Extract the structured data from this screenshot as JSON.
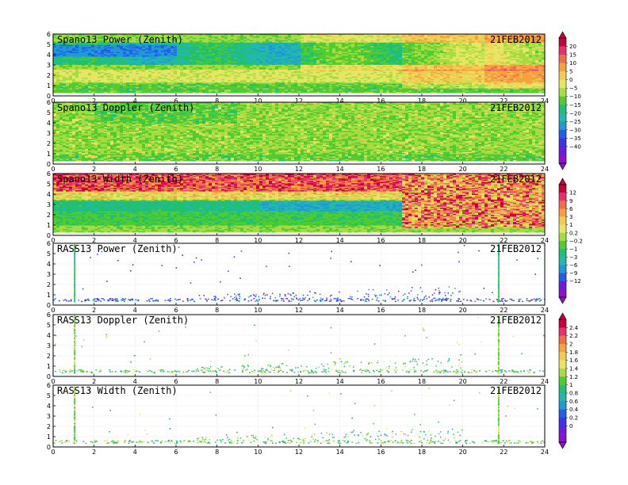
{
  "figure": {
    "date_label": "21FEB2012",
    "x_ticks": [
      0,
      2,
      4,
      6,
      8,
      10,
      12,
      14,
      16,
      18,
      20,
      22,
      24
    ],
    "y_ticks": [
      0,
      1,
      2,
      3,
      4,
      5,
      6
    ]
  },
  "chart_data": [
    {
      "type": "heatmap",
      "title": "Spano13 Power (Zenith)",
      "xlim": [
        0,
        24
      ],
      "ylim": [
        0,
        6
      ],
      "colorbar": "power_doppler",
      "description_of_field": "layered: green near 1.5-2.5 km, blue bands 3-5 km, yellow patches late day",
      "field": "power"
    },
    {
      "type": "heatmap",
      "title": "Spano13 Doppler (Zenith)",
      "xlim": [
        0,
        24
      ],
      "ylim": [
        0,
        6
      ],
      "colorbar": "power_doppler",
      "field": "doppler"
    },
    {
      "type": "heatmap",
      "title": "Spano13 Width (Zenith)",
      "xlim": [
        0,
        24
      ],
      "ylim": [
        0,
        6
      ],
      "colorbar": "width_rass",
      "field": "width"
    },
    {
      "type": "scatter",
      "title": "RASS13 Power (Zenith)",
      "xlim": [
        0,
        24
      ],
      "ylim": [
        0,
        6
      ],
      "colorbar": "width_rass",
      "field": "rass_power"
    },
    {
      "type": "scatter",
      "title": "RASS13 Doppler (Zenith)",
      "xlim": [
        0,
        24
      ],
      "ylim": [
        0,
        6
      ],
      "colorbar": "rass_temp",
      "field": "rass_doppler"
    },
    {
      "type": "scatter",
      "title": "RASS13 Width (Zenith)",
      "xlim": [
        0,
        24
      ],
      "ylim": [
        0,
        6
      ],
      "colorbar": "rass_temp",
      "field": "rass_width"
    }
  ],
  "colorbars": {
    "power_doppler": {
      "labels": [
        "20",
        "15",
        "10",
        "5",
        "0",
        "−5",
        "−10",
        "−15",
        "−20",
        "−25",
        "−30",
        "−35",
        "−40"
      ],
      "colors": [
        "#c8003c",
        "#e8306a",
        "#f06e4a",
        "#f6a040",
        "#f0cc50",
        "#e6e664",
        "#a6dc40",
        "#50cc30",
        "#20c070",
        "#20b8b0",
        "#2098d8",
        "#2060e8",
        "#3c34e8",
        "#6c1ce0",
        "#8e10d0"
      ]
    },
    "width_rass": {
      "labels": [
        "12",
        "9",
        "6",
        "3",
        "1",
        "0.2",
        "−0.2",
        "−1",
        "−3",
        "−6",
        "−9",
        "−12"
      ],
      "colors": [
        "#c8003c",
        "#e8306a",
        "#f06e4a",
        "#f6a040",
        "#f0cc50",
        "#e6e664",
        "#a6dc40",
        "#50cc30",
        "#20c070",
        "#20b8b0",
        "#2098d8",
        "#2060e8",
        "#6c1ce0",
        "#8e10d0"
      ]
    },
    "rass_temp": {
      "labels": [
        "2.4",
        "2.2",
        "2",
        "1.8",
        "1.6",
        "1.4",
        "1.2",
        "1",
        "0.8",
        "0.6",
        "0.4",
        "0.2",
        "0"
      ],
      "colors": [
        "#c8003c",
        "#e8306a",
        "#f06e4a",
        "#f6a040",
        "#f0cc50",
        "#e6e664",
        "#a6dc40",
        "#50cc30",
        "#20c070",
        "#20b8b0",
        "#2098d8",
        "#2060e8",
        "#3c34e8",
        "#6c1ce0",
        "#8e10d0"
      ]
    }
  }
}
